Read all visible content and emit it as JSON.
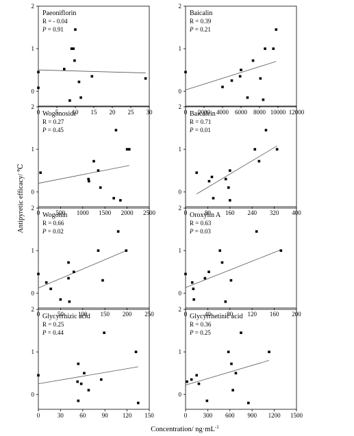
{
  "ylabel": "Antipyretic efficacy/ ℃",
  "xlabel": "Concentration/ ng·mL",
  "xlabel_sup": "-1",
  "chart_data": [
    {
      "type": "scatter",
      "title": "Paeoniflorin",
      "r_text": "R = - 0.04",
      "p_text": "P = 0.91",
      "xlim": [
        0,
        30
      ],
      "ylim": [
        -0.35,
        2
      ],
      "xticks": [
        0,
        5,
        10,
        15,
        20,
        25,
        30
      ],
      "yticks": [
        0,
        1,
        2
      ],
      "xtick_labels": [
        "0",
        "5",
        "10",
        "15",
        "20",
        "25",
        "30"
      ],
      "ytick_labels": [
        "0",
        "1",
        "2"
      ],
      "points": [
        [
          0,
          0.45
        ],
        [
          0,
          0.08
        ],
        [
          7,
          0.52
        ],
        [
          8.5,
          -0.22
        ],
        [
          9,
          1.0
        ],
        [
          9.5,
          1.0
        ],
        [
          9.8,
          0.72
        ],
        [
          10,
          1.45
        ],
        [
          11,
          0.22
        ],
        [
          11.5,
          -0.15
        ],
        [
          14.5,
          0.35
        ],
        [
          29,
          0.3
        ]
      ],
      "fit": [
        [
          0,
          0.5
        ],
        [
          29,
          0.43
        ]
      ]
    },
    {
      "type": "scatter",
      "title": "Baicalin",
      "r_text": "R = 0.39",
      "p_text": "P = 0.21",
      "xlim": [
        0,
        12000
      ],
      "ylim": [
        -0.35,
        2
      ],
      "xticks": [
        0,
        2000,
        4000,
        6000,
        8000,
        10000,
        12000
      ],
      "yticks": [
        0,
        1,
        2
      ],
      "xtick_labels": [
        "0",
        "2000",
        "4000",
        "6000",
        "8000",
        "10000",
        "12000"
      ],
      "ytick_labels": [
        "0",
        "1",
        "2"
      ],
      "points": [
        [
          0,
          0.45
        ],
        [
          4000,
          0.1
        ],
        [
          5000,
          0.25
        ],
        [
          5900,
          0.35
        ],
        [
          6000,
          0.5
        ],
        [
          6700,
          -0.15
        ],
        [
          7300,
          0.72
        ],
        [
          8100,
          0.3
        ],
        [
          8400,
          -0.2
        ],
        [
          8600,
          1.0
        ],
        [
          9500,
          1.0
        ],
        [
          9800,
          1.45
        ]
      ],
      "fit": [
        [
          0,
          0.03
        ],
        [
          9800,
          0.7
        ]
      ]
    },
    {
      "type": "scatter",
      "title": "Wogonoside",
      "r_text": "R = 0.27",
      "p_text": "P = 0.45",
      "xlim": [
        0,
        2500
      ],
      "ylim": [
        -0.35,
        2
      ],
      "xticks": [
        0,
        500,
        1000,
        1500,
        2000,
        2500
      ],
      "yticks": [
        0,
        1,
        2
      ],
      "xtick_labels": [
        "0",
        "500",
        "1000",
        "1500",
        "2000",
        "2500"
      ],
      "ytick_labels": [
        "0",
        "1",
        "2"
      ],
      "points": [
        [
          50,
          0.45
        ],
        [
          1130,
          0.3
        ],
        [
          1140,
          0.25
        ],
        [
          1250,
          0.72
        ],
        [
          1350,
          0.5
        ],
        [
          1400,
          0.1
        ],
        [
          1700,
          -0.15
        ],
        [
          1750,
          1.45
        ],
        [
          1850,
          -0.2
        ],
        [
          2000,
          1.0
        ],
        [
          2050,
          1.0
        ]
      ],
      "fit": [
        [
          0,
          0.2
        ],
        [
          2050,
          0.62
        ]
      ]
    },
    {
      "type": "scatter",
      "title": "Baicalein",
      "r_text": "R = 0.71",
      "p_text": "P = 0.01",
      "xlim": [
        0,
        400
      ],
      "ylim": [
        -0.35,
        2
      ],
      "xticks": [
        0,
        80,
        160,
        240,
        320,
        400
      ],
      "yticks": [
        0,
        1,
        2
      ],
      "xtick_labels": [
        "0",
        "80",
        "160",
        "240",
        "320",
        "400"
      ],
      "ytick_labels": [
        "0",
        "1",
        "2"
      ],
      "points": [
        [
          40,
          0.45
        ],
        [
          85,
          0.25
        ],
        [
          95,
          0.35
        ],
        [
          100,
          -0.15
        ],
        [
          145,
          0.3
        ],
        [
          155,
          0.1
        ],
        [
          160,
          0.5
        ],
        [
          160,
          -0.2
        ],
        [
          250,
          1.0
        ],
        [
          265,
          0.72
        ],
        [
          290,
          1.45
        ],
        [
          330,
          1.0
        ]
      ],
      "fit": [
        [
          40,
          -0.05
        ],
        [
          330,
          1.08
        ]
      ]
    },
    {
      "type": "scatter",
      "title": "Wogonin",
      "r_text": "R = 0.66",
      "p_text": "P = 0.02",
      "xlim": [
        0,
        250
      ],
      "ylim": [
        -0.35,
        2
      ],
      "xticks": [
        0,
        50,
        100,
        150,
        200,
        250
      ],
      "yticks": [
        0,
        1,
        2
      ],
      "xtick_labels": [
        "0",
        "50",
        "100",
        "150",
        "200",
        "250"
      ],
      "ytick_labels": [
        "0",
        "1",
        "2"
      ],
      "points": [
        [
          0,
          0.45
        ],
        [
          18,
          0.25
        ],
        [
          28,
          0.1
        ],
        [
          50,
          -0.15
        ],
        [
          68,
          0.35
        ],
        [
          68,
          0.72
        ],
        [
          70,
          -0.2
        ],
        [
          80,
          0.5
        ],
        [
          135,
          1.0
        ],
        [
          145,
          0.3
        ],
        [
          180,
          1.45
        ],
        [
          198,
          1.0
        ]
      ],
      "fit": [
        [
          0,
          0.12
        ],
        [
          198,
          1.0
        ]
      ]
    },
    {
      "type": "scatter",
      "title": "Oroxylin A",
      "r_text": "R = 0.63",
      "p_text": "P = 0.03",
      "xlim": [
        0,
        200
      ],
      "ylim": [
        -0.35,
        2
      ],
      "xticks": [
        0,
        40,
        80,
        120,
        160,
        200
      ],
      "yticks": [
        0,
        1,
        2
      ],
      "xtick_labels": [
        "0",
        "40",
        "80",
        "120",
        "160",
        "200"
      ],
      "ytick_labels": [
        "0",
        "1",
        "2"
      ],
      "points": [
        [
          0,
          0.45
        ],
        [
          12,
          0.25
        ],
        [
          14,
          0.1
        ],
        [
          15,
          -0.15
        ],
        [
          35,
          0.35
        ],
        [
          42,
          0.5
        ],
        [
          62,
          1.0
        ],
        [
          66,
          0.72
        ],
        [
          72,
          -0.2
        ],
        [
          82,
          0.3
        ],
        [
          128,
          1.45
        ],
        [
          172,
          1.0
        ]
      ],
      "fit": [
        [
          0,
          0.13
        ],
        [
          172,
          1.02
        ]
      ]
    },
    {
      "type": "scatter",
      "title": "Glycyrrhizic acid",
      "r_text": "R = 0.25",
      "p_text": "P = 0.44",
      "xlim": [
        0,
        150
      ],
      "ylim": [
        -0.35,
        2
      ],
      "xticks": [
        0,
        30,
        60,
        90,
        120,
        150
      ],
      "yticks": [
        0,
        1,
        2
      ],
      "xtick_labels": [
        "0",
        "30",
        "60",
        "90",
        "120",
        "150"
      ],
      "ytick_labels": [
        "0",
        "1",
        "2"
      ],
      "points": [
        [
          0,
          0.45
        ],
        [
          53,
          0.3
        ],
        [
          54,
          0.72
        ],
        [
          54,
          -0.15
        ],
        [
          58,
          0.25
        ],
        [
          62,
          0.5
        ],
        [
          68,
          0.1
        ],
        [
          85,
          0.35
        ],
        [
          89,
          1.45
        ],
        [
          132,
          1.0
        ],
        [
          135,
          -0.2
        ]
      ],
      "fit": [
        [
          0,
          0.25
        ],
        [
          135,
          0.65
        ]
      ]
    },
    {
      "type": "scatter",
      "title": "Glycyrrhetinic acid",
      "r_text": "R = 0.36",
      "p_text": "P = 0.25",
      "xlim": [
        0,
        1500
      ],
      "ylim": [
        -0.35,
        2
      ],
      "xticks": [
        0,
        300,
        600,
        900,
        1200,
        1500
      ],
      "yticks": [
        0,
        1,
        2
      ],
      "xtick_labels": [
        "0",
        "300",
        "600",
        "900",
        "1200",
        "1500"
      ],
      "ytick_labels": [
        "0",
        "1",
        "2"
      ],
      "points": [
        [
          20,
          0.3
        ],
        [
          80,
          0.35
        ],
        [
          150,
          0.45
        ],
        [
          180,
          0.25
        ],
        [
          290,
          -0.15
        ],
        [
          580,
          1.0
        ],
        [
          620,
          0.72
        ],
        [
          640,
          0.1
        ],
        [
          680,
          0.5
        ],
        [
          750,
          1.45
        ],
        [
          850,
          -0.2
        ],
        [
          1130,
          1.0
        ]
      ],
      "fit": [
        [
          0,
          0.22
        ],
        [
          1130,
          0.8
        ]
      ]
    }
  ]
}
